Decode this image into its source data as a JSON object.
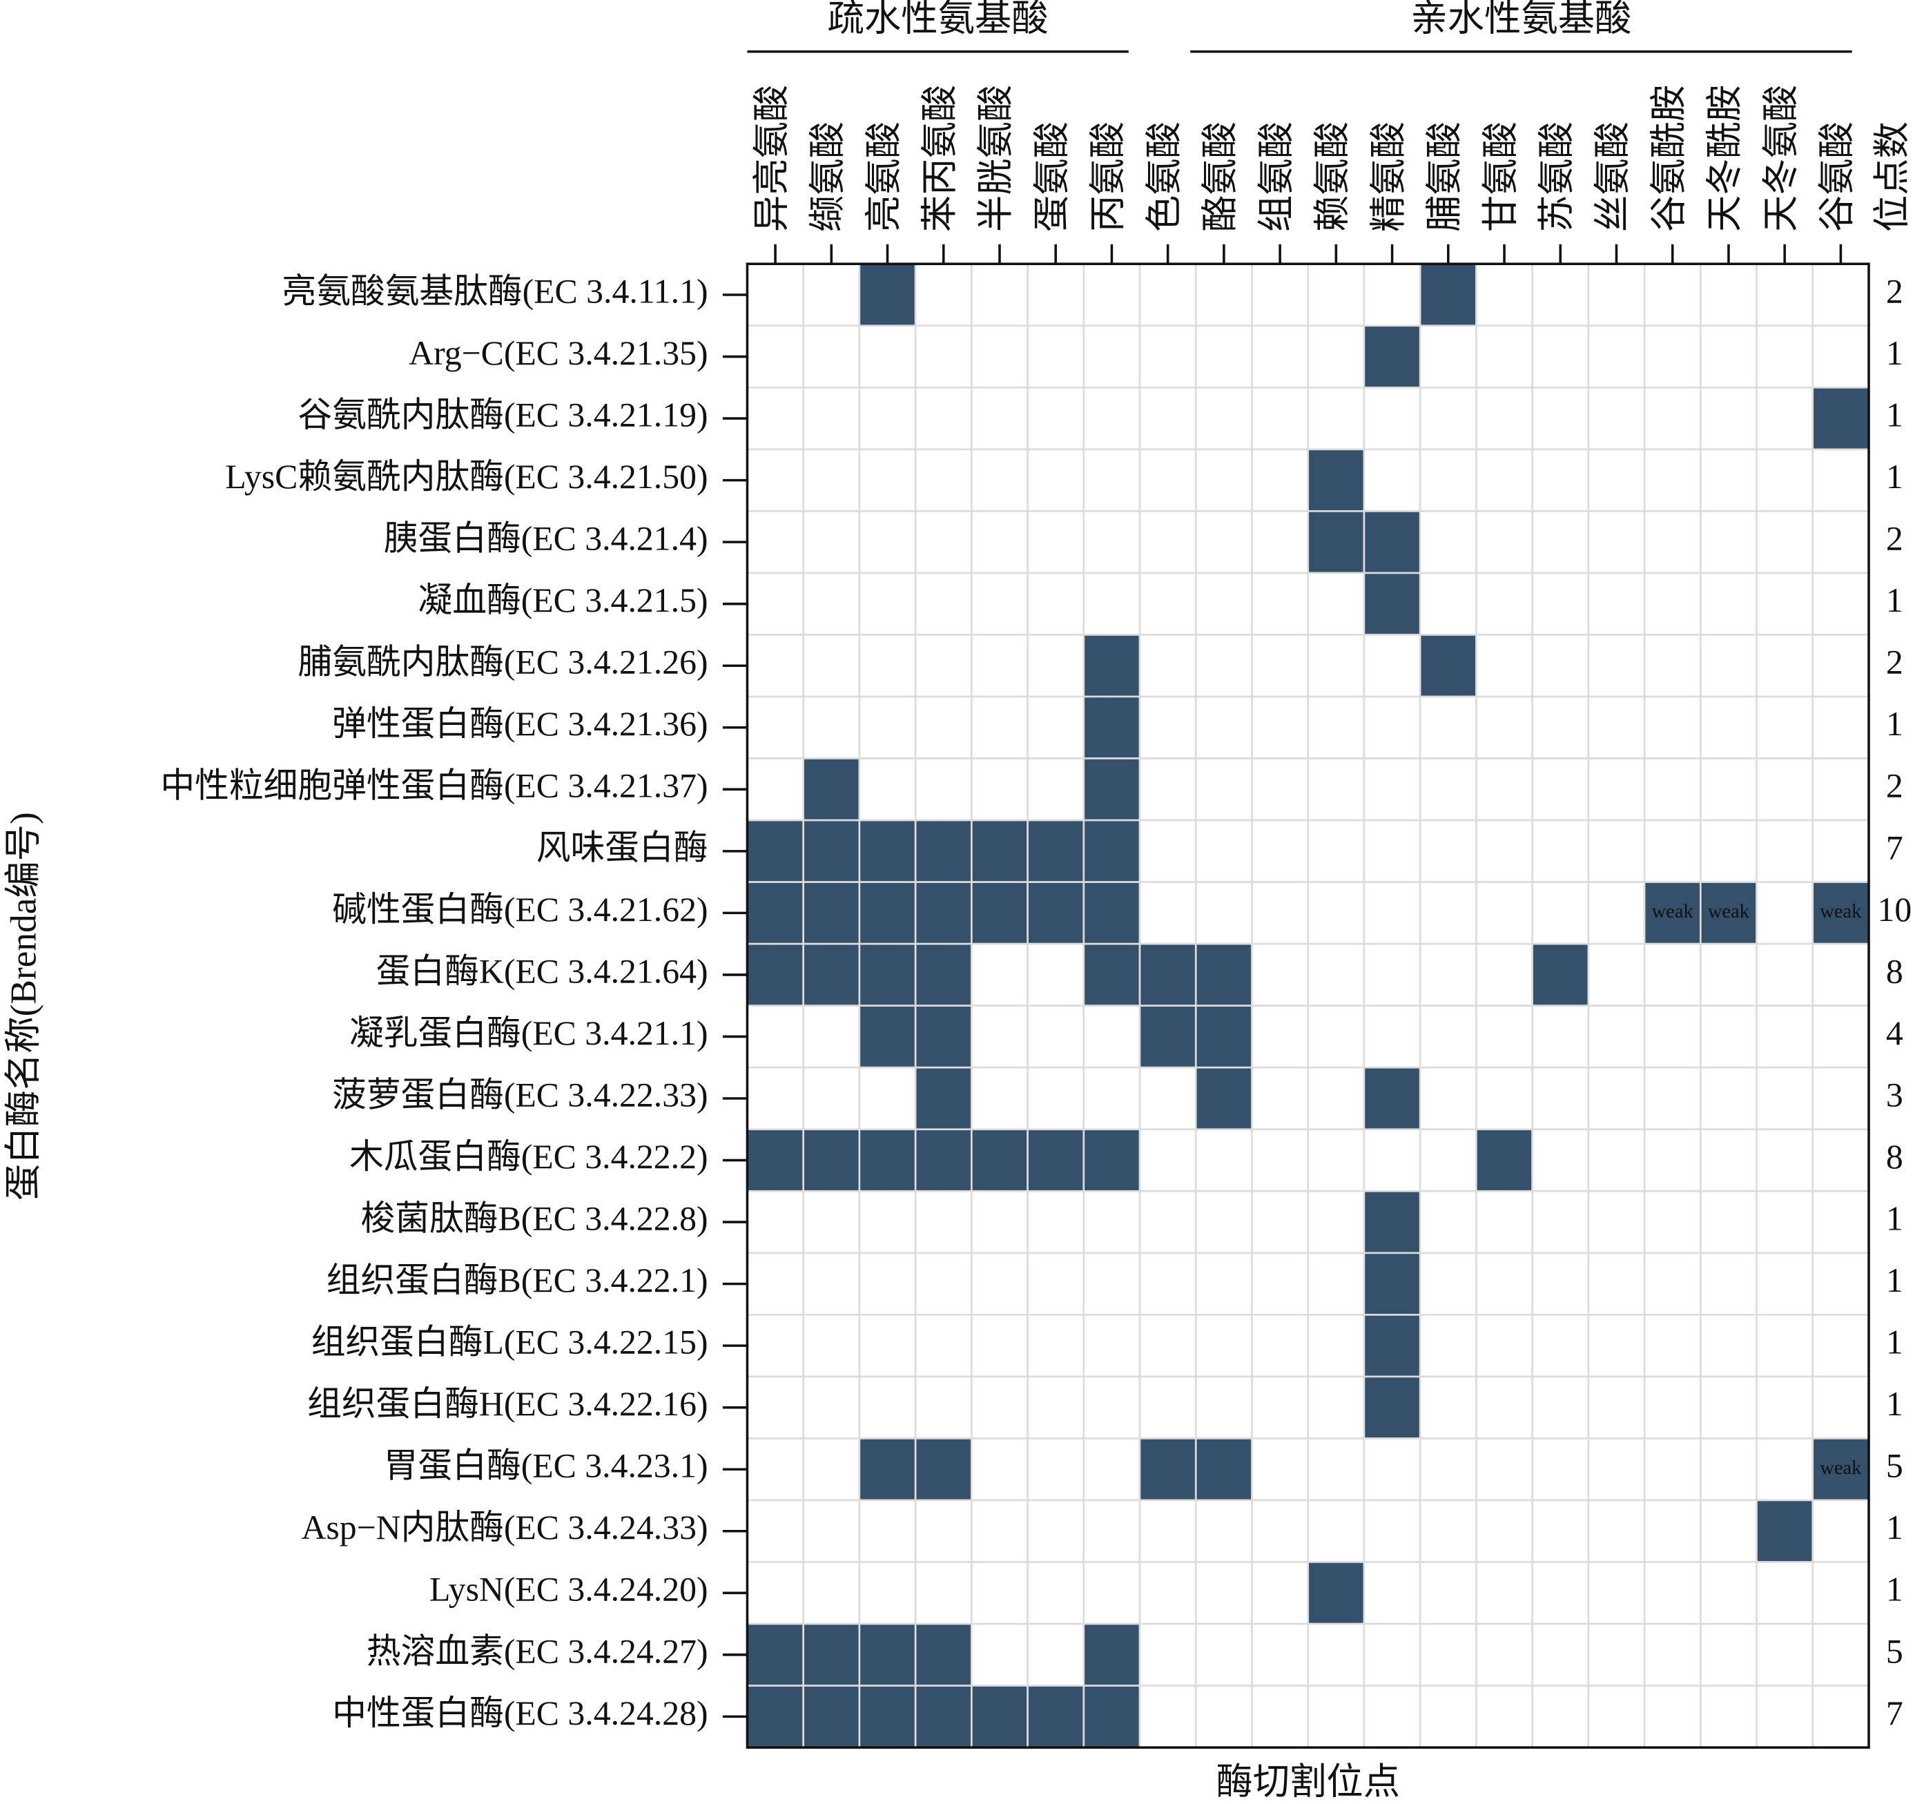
{
  "chart_data": {
    "type": "heatmap",
    "x_label": "酶切割位点",
    "y_label": "蛋白酶名称(Brenda编号)",
    "count_header": "位点数",
    "fill_color": "#34506b",
    "empty_color": "#ffffff",
    "count_color": "#1f3c8c",
    "count_header_color": "#d01818",
    "label_color": "#f0e6a0",
    "column_groups": [
      {
        "name": "疏水性氨基酸",
        "columns": [
          "异亮氨酸",
          "缬氨酸",
          "亮氨酸",
          "苯丙氨酸",
          "半胱氨酸",
          "蛋氨酸",
          "丙氨酸"
        ]
      },
      {
        "name": "亲水性氨基酸",
        "columns": [
          "色氨酸",
          "酪氨酸",
          "组氨酸",
          "赖氨酸",
          "精氨酸",
          "脯氨酸",
          "甘氨酸",
          "苏氨酸",
          "丝氨酸",
          "谷氨酰胺",
          "天冬酰胺",
          "天冬氨酸",
          "谷氨酸"
        ]
      }
    ],
    "rows": [
      {
        "name": "亮氨酸氨基肽酶(EC 3.4.11.1)",
        "values": [
          0,
          0,
          1,
          0,
          0,
          0,
          0,
          0,
          0,
          0,
          0,
          0,
          1,
          0,
          0,
          0,
          0,
          0,
          0,
          0
        ],
        "count": 2
      },
      {
        "name": "Arg−C(EC 3.4.21.35)",
        "values": [
          0,
          0,
          0,
          0,
          0,
          0,
          0,
          0,
          0,
          0,
          0,
          1,
          0,
          0,
          0,
          0,
          0,
          0,
          0,
          0
        ],
        "count": 1
      },
      {
        "name": "谷氨酰内肽酶(EC 3.4.21.19)",
        "values": [
          0,
          0,
          0,
          0,
          0,
          0,
          0,
          0,
          0,
          0,
          0,
          0,
          0,
          0,
          0,
          0,
          0,
          0,
          0,
          1
        ],
        "count": 1
      },
      {
        "name": "LysC赖氨酰内肽酶(EC 3.4.21.50)",
        "values": [
          0,
          0,
          0,
          0,
          0,
          0,
          0,
          0,
          0,
          0,
          1,
          0,
          0,
          0,
          0,
          0,
          0,
          0,
          0,
          0
        ],
        "count": 1
      },
      {
        "name": "胰蛋白酶(EC 3.4.21.4)",
        "values": [
          0,
          0,
          0,
          0,
          0,
          0,
          0,
          0,
          0,
          0,
          1,
          1,
          0,
          0,
          0,
          0,
          0,
          0,
          0,
          0
        ],
        "count": 2
      },
      {
        "name": "凝血酶(EC 3.4.21.5)",
        "values": [
          0,
          0,
          0,
          0,
          0,
          0,
          0,
          0,
          0,
          0,
          0,
          1,
          0,
          0,
          0,
          0,
          0,
          0,
          0,
          0
        ],
        "count": 1
      },
      {
        "name": "脯氨酰内肽酶(EC 3.4.21.26)",
        "values": [
          0,
          0,
          0,
          0,
          0,
          0,
          1,
          0,
          0,
          0,
          0,
          0,
          1,
          0,
          0,
          0,
          0,
          0,
          0,
          0
        ],
        "count": 2
      },
      {
        "name": "弹性蛋白酶(EC 3.4.21.36)",
        "values": [
          0,
          0,
          0,
          0,
          0,
          0,
          1,
          0,
          0,
          0,
          0,
          0,
          0,
          0,
          0,
          0,
          0,
          0,
          0,
          0
        ],
        "count": 1
      },
      {
        "name": "中性粒细胞弹性蛋白酶(EC 3.4.21.37)",
        "values": [
          0,
          1,
          0,
          0,
          0,
          0,
          1,
          0,
          0,
          0,
          0,
          0,
          0,
          0,
          0,
          0,
          0,
          0,
          0,
          0
        ],
        "count": 2
      },
      {
        "name": "风味蛋白酶",
        "values": [
          1,
          1,
          1,
          1,
          1,
          1,
          1,
          0,
          0,
          0,
          0,
          0,
          0,
          0,
          0,
          0,
          0,
          0,
          0,
          0
        ],
        "count": 7
      },
      {
        "name": "碱性蛋白酶(EC 3.4.21.62)",
        "values": [
          1,
          1,
          1,
          1,
          1,
          1,
          1,
          0,
          0,
          0,
          0,
          0,
          0,
          0,
          0,
          0,
          1,
          1,
          0,
          1
        ],
        "value_labels": [
          null,
          null,
          null,
          null,
          null,
          null,
          null,
          null,
          null,
          null,
          null,
          null,
          null,
          null,
          null,
          null,
          "weak",
          "weak",
          null,
          "weak"
        ],
        "count": 10
      },
      {
        "name": "蛋白酶K(EC 3.4.21.64)",
        "values": [
          1,
          1,
          1,
          1,
          0,
          0,
          1,
          1,
          1,
          0,
          0,
          0,
          0,
          0,
          1,
          0,
          0,
          0,
          0,
          0
        ],
        "count": 8
      },
      {
        "name": "凝乳蛋白酶(EC 3.4.21.1)",
        "values": [
          0,
          0,
          1,
          1,
          0,
          0,
          0,
          1,
          1,
          0,
          0,
          0,
          0,
          0,
          0,
          0,
          0,
          0,
          0,
          0
        ],
        "count": 4
      },
      {
        "name": "菠萝蛋白酶(EC 3.4.22.33)",
        "values": [
          0,
          0,
          0,
          1,
          0,
          0,
          0,
          0,
          1,
          0,
          0,
          1,
          0,
          0,
          0,
          0,
          0,
          0,
          0,
          0
        ],
        "count": 3
      },
      {
        "name": "木瓜蛋白酶(EC 3.4.22.2)",
        "values": [
          1,
          1,
          1,
          1,
          1,
          1,
          1,
          0,
          0,
          0,
          0,
          0,
          0,
          1,
          0,
          0,
          0,
          0,
          0,
          0
        ],
        "count": 8
      },
      {
        "name": "梭菌肽酶B(EC 3.4.22.8)",
        "values": [
          0,
          0,
          0,
          0,
          0,
          0,
          0,
          0,
          0,
          0,
          0,
          1,
          0,
          0,
          0,
          0,
          0,
          0,
          0,
          0
        ],
        "count": 1
      },
      {
        "name": "组织蛋白酶B(EC 3.4.22.1)",
        "values": [
          0,
          0,
          0,
          0,
          0,
          0,
          0,
          0,
          0,
          0,
          0,
          1,
          0,
          0,
          0,
          0,
          0,
          0,
          0,
          0
        ],
        "count": 1
      },
      {
        "name": "组织蛋白酶L(EC 3.4.22.15)",
        "values": [
          0,
          0,
          0,
          0,
          0,
          0,
          0,
          0,
          0,
          0,
          0,
          1,
          0,
          0,
          0,
          0,
          0,
          0,
          0,
          0
        ],
        "count": 1
      },
      {
        "name": "组织蛋白酶H(EC 3.4.22.16)",
        "values": [
          0,
          0,
          0,
          0,
          0,
          0,
          0,
          0,
          0,
          0,
          0,
          1,
          0,
          0,
          0,
          0,
          0,
          0,
          0,
          0
        ],
        "count": 1
      },
      {
        "name": "胃蛋白酶(EC 3.4.23.1)",
        "values": [
          0,
          0,
          1,
          1,
          0,
          0,
          0,
          1,
          1,
          0,
          0,
          0,
          0,
          0,
          0,
          0,
          0,
          0,
          0,
          1
        ],
        "value_labels": [
          null,
          null,
          null,
          null,
          null,
          null,
          null,
          null,
          null,
          null,
          null,
          null,
          null,
          null,
          null,
          null,
          null,
          null,
          null,
          "weak"
        ],
        "count": 5
      },
      {
        "name": "Asp−N内肽酶(EC 3.4.24.33)",
        "values": [
          0,
          0,
          0,
          0,
          0,
          0,
          0,
          0,
          0,
          0,
          0,
          0,
          0,
          0,
          0,
          0,
          0,
          0,
          1,
          0
        ],
        "count": 1
      },
      {
        "name": "LysN(EC 3.4.24.20)",
        "values": [
          0,
          0,
          0,
          0,
          0,
          0,
          0,
          0,
          0,
          0,
          1,
          0,
          0,
          0,
          0,
          0,
          0,
          0,
          0,
          0
        ],
        "count": 1
      },
      {
        "name": "热溶血素(EC 3.4.24.27)",
        "values": [
          1,
          1,
          1,
          1,
          0,
          0,
          1,
          0,
          0,
          0,
          0,
          0,
          0,
          0,
          0,
          0,
          0,
          0,
          0,
          0
        ],
        "count": 5
      },
      {
        "name": "中性蛋白酶(EC 3.4.24.28)",
        "values": [
          1,
          1,
          1,
          1,
          1,
          1,
          1,
          0,
          0,
          0,
          0,
          0,
          0,
          0,
          0,
          0,
          0,
          0,
          0,
          0
        ],
        "count": 7
      }
    ]
  }
}
